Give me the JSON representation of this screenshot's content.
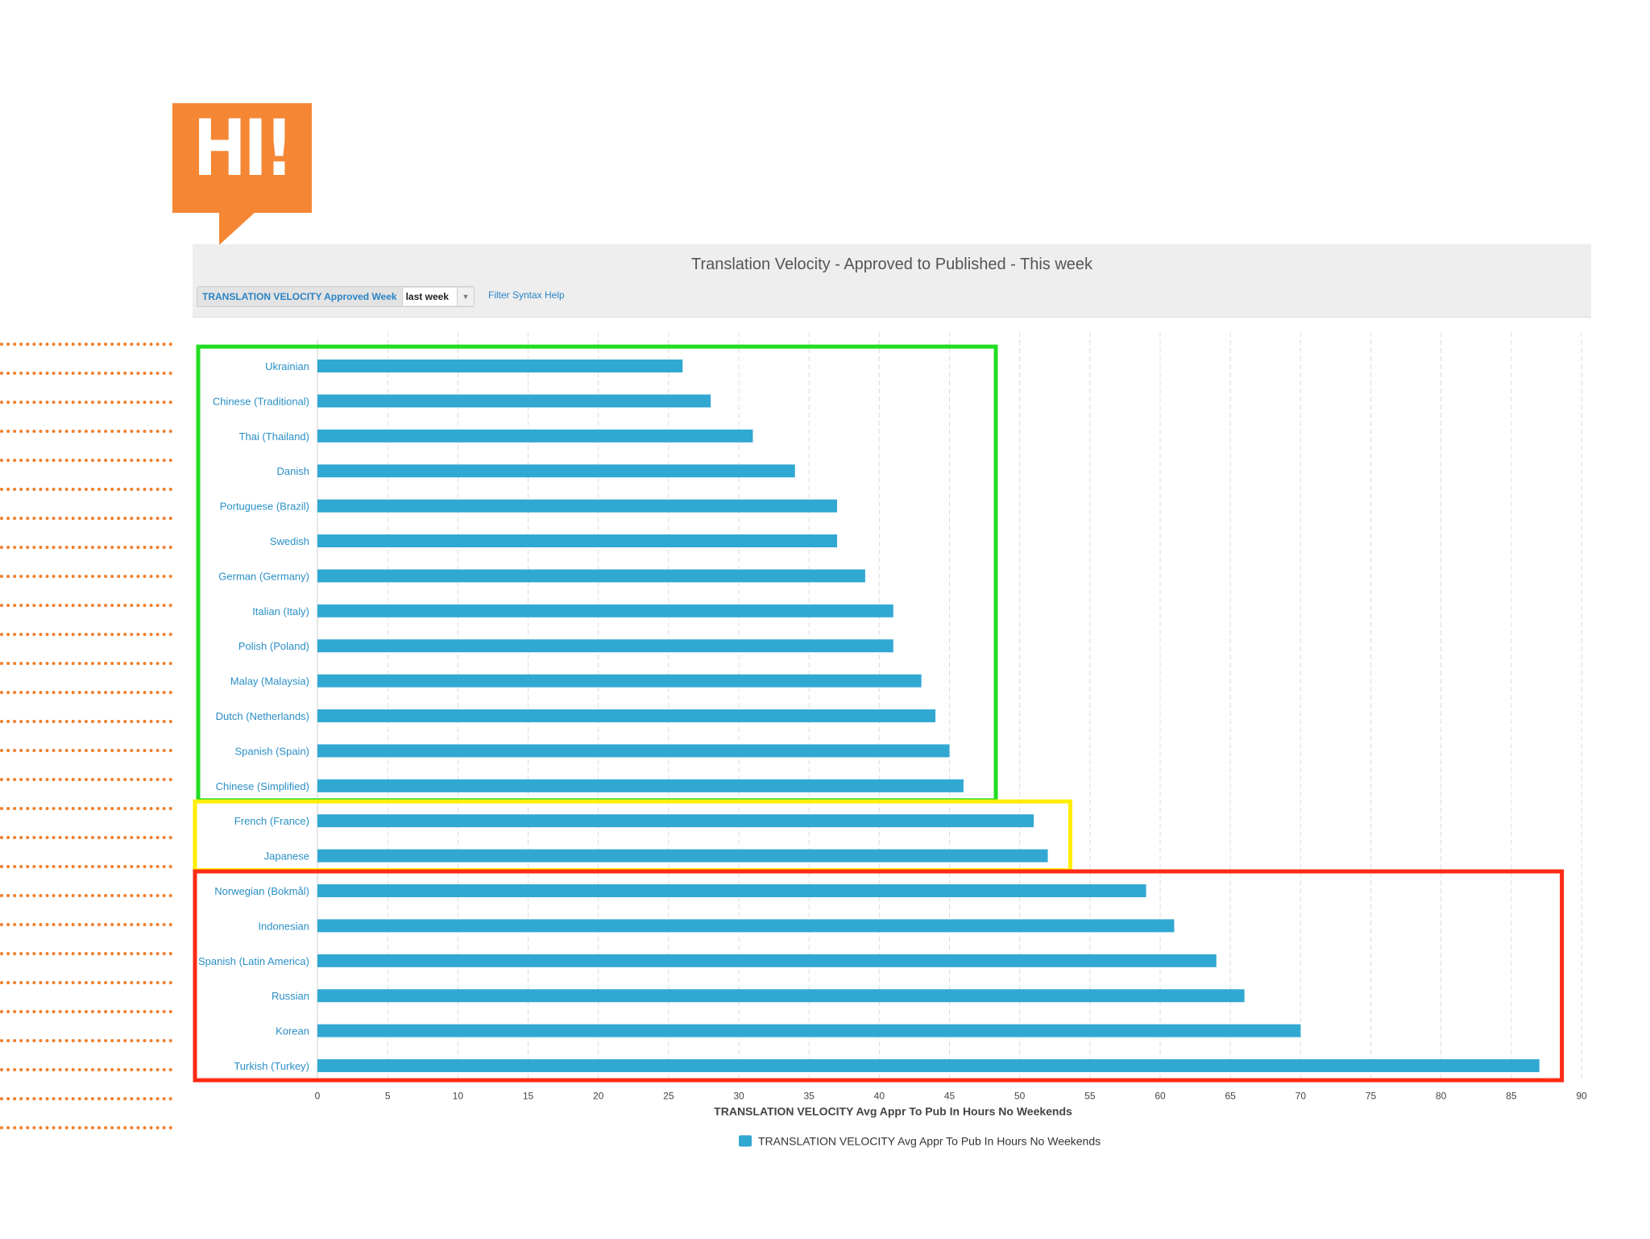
{
  "badge": {
    "text": "HI!"
  },
  "header": {
    "title": "Translation Velocity - Approved to Published - This week",
    "filter_label": "TRANSLATION VELOCITY Approved Week",
    "filter_value": "last week",
    "filter_help": "Filter Syntax Help"
  },
  "colors": {
    "bar": "#31a8d2",
    "badge": "#f58634",
    "highlight_fast": "#22dd22",
    "highlight_mid": "#ffee00",
    "highlight_slow": "#ff2a14",
    "grid": "#dddddd"
  },
  "chart_data": {
    "type": "bar",
    "orientation": "horizontal",
    "categories": [
      "Ukrainian",
      "Chinese (Traditional)",
      "Thai (Thailand)",
      "Danish",
      "Portuguese (Brazil)",
      "Swedish",
      "German (Germany)",
      "Italian (Italy)",
      "Polish (Poland)",
      "Malay (Malaysia)",
      "Dutch (Netherlands)",
      "Spanish (Spain)",
      "Chinese (Simplified)",
      "French (France)",
      "Japanese",
      "Norwegian (Bokmål)",
      "Indonesian",
      "Spanish (Latin America)",
      "Russian",
      "Korean",
      "Turkish (Turkey)"
    ],
    "series": [
      {
        "name": "TRANSLATION VELOCITY Avg Appr To Pub In Hours No Weekends",
        "values": [
          26,
          28,
          31,
          34,
          37,
          37,
          39,
          41,
          41,
          43,
          44,
          45,
          46,
          51,
          52,
          59,
          61,
          64,
          66,
          70,
          87
        ]
      }
    ],
    "xlim": [
      0,
      90
    ],
    "xticks": [
      "0",
      "5",
      "10",
      "15",
      "20",
      "25",
      "30",
      "35",
      "40",
      "45",
      "50",
      "55",
      "60",
      "65",
      "70",
      "75",
      "80",
      "85",
      "90"
    ],
    "xlabel": "TRANSLATION VELOCITY Avg Appr To Pub In Hours No Weekends",
    "ylabel": "",
    "grid": true,
    "legend": "bottom-center",
    "highlight_groups": [
      {
        "color_key": "highlight_fast",
        "from_index": 0,
        "to_index": 12
      },
      {
        "color_key": "highlight_mid",
        "from_index": 13,
        "to_index": 14
      },
      {
        "color_key": "highlight_slow",
        "from_index": 15,
        "to_index": 20
      }
    ]
  }
}
